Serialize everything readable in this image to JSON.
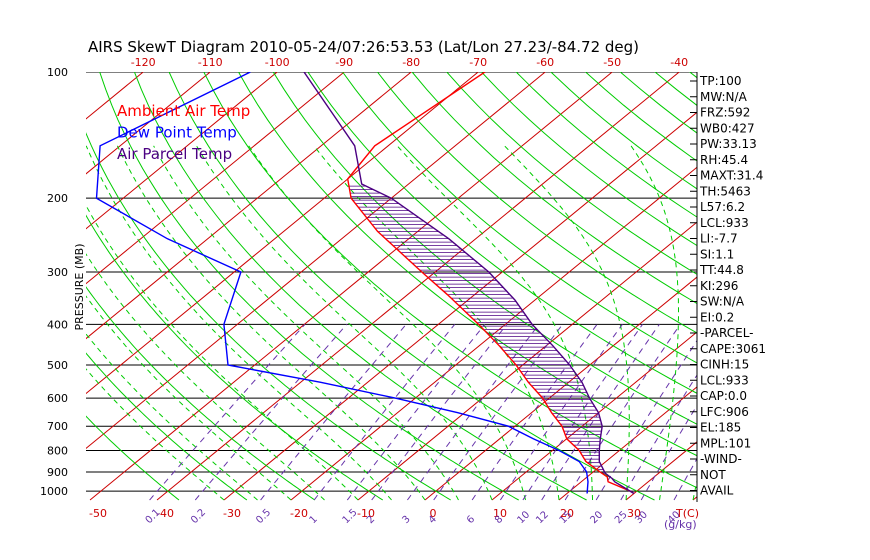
{
  "chart_data": {
    "type": "skewt",
    "title": "AIRS SkewT Diagram 2010-05-24/07:26:53.53 (Lat/Lon 27.23/-84.72 deg)",
    "ylabel": "PRESSURE (MB)",
    "x_unit_label": "T(C)",
    "mixing_ratio_unit_label": "(g/kg)",
    "top_tick_labels": [
      "-120",
      "-110",
      "-100",
      "-90",
      "-80",
      "-70",
      "-60",
      "-50",
      "-40"
    ],
    "bottom_tick_labels": [
      "-50",
      "-40",
      "-30",
      "-20",
      "-10",
      "0",
      "10",
      "20",
      "30"
    ],
    "pressure_tick_labels": [
      "100",
      "200",
      "300",
      "400",
      "500",
      "600",
      "700",
      "800",
      "900",
      "1000"
    ],
    "mixing_ratio_labels": [
      "0.1",
      "0.2",
      "0.5",
      "1",
      "1.5",
      "2",
      "3",
      "4",
      "6",
      "8",
      "10",
      "12",
      "15",
      "20",
      "25",
      "30",
      "40"
    ],
    "ylim": [
      1050,
      100
    ],
    "legend": [
      {
        "label": "Ambient Air Temp",
        "color": "#ff0000"
      },
      {
        "label": "Dew Point Temp",
        "color": "#0000ff"
      },
      {
        "label": "Air Parcel Temp",
        "color": "#4b0082"
      }
    ],
    "series": [
      {
        "name": "Ambient Air Temp",
        "color": "#ff0000",
        "points": [
          {
            "p": 100,
            "t": -69
          },
          {
            "p": 150,
            "t": -72
          },
          {
            "p": 180,
            "t": -70
          },
          {
            "p": 200,
            "t": -66
          },
          {
            "p": 240,
            "t": -56
          },
          {
            "p": 300,
            "t": -42
          },
          {
            "p": 340,
            "t": -34
          },
          {
            "p": 400,
            "t": -24
          },
          {
            "p": 450,
            "t": -17
          },
          {
            "p": 500,
            "t": -11
          },
          {
            "p": 550,
            "t": -6
          },
          {
            "p": 600,
            "t": -1
          },
          {
            "p": 650,
            "t": 3
          },
          {
            "p": 700,
            "t": 7
          },
          {
            "p": 750,
            "t": 10
          },
          {
            "p": 800,
            "t": 14
          },
          {
            "p": 850,
            "t": 17
          },
          {
            "p": 900,
            "t": 21
          },
          {
            "p": 925,
            "t": 23
          },
          {
            "p": 950,
            "t": 24
          },
          {
            "p": 1000,
            "t": 29
          },
          {
            "p": 1013,
            "t": 30
          }
        ]
      },
      {
        "name": "Dew Point Temp",
        "color": "#0000ff",
        "points": [
          {
            "p": 100,
            "t": -104
          },
          {
            "p": 150,
            "t": -113
          },
          {
            "p": 200,
            "t": -104
          },
          {
            "p": 250,
            "t": -86
          },
          {
            "p": 300,
            "t": -69
          },
          {
            "p": 400,
            "t": -62
          },
          {
            "p": 500,
            "t": -54
          },
          {
            "p": 550,
            "t": -37
          },
          {
            "p": 600,
            "t": -23
          },
          {
            "p": 650,
            "t": -11
          },
          {
            "p": 700,
            "t": -1
          },
          {
            "p": 750,
            "t": 5
          },
          {
            "p": 800,
            "t": 11
          },
          {
            "p": 850,
            "t": 16
          },
          {
            "p": 900,
            "t": 19
          },
          {
            "p": 950,
            "t": 21
          },
          {
            "p": 1013,
            "t": 23
          }
        ]
      },
      {
        "name": "Air Parcel Temp",
        "color": "#4b0082",
        "points": [
          {
            "p": 100,
            "t": -96
          },
          {
            "p": 150,
            "t": -75
          },
          {
            "p": 185,
            "t": -67
          },
          {
            "p": 200,
            "t": -60
          },
          {
            "p": 250,
            "t": -44
          },
          {
            "p": 300,
            "t": -32
          },
          {
            "p": 350,
            "t": -23
          },
          {
            "p": 400,
            "t": -16
          },
          {
            "p": 450,
            "t": -9
          },
          {
            "p": 500,
            "t": -3
          },
          {
            "p": 550,
            "t": 2
          },
          {
            "p": 600,
            "t": 6
          },
          {
            "p": 650,
            "t": 10
          },
          {
            "p": 700,
            "t": 13
          },
          {
            "p": 750,
            "t": 15
          },
          {
            "p": 800,
            "t": 17
          },
          {
            "p": 850,
            "t": 19
          },
          {
            "p": 906,
            "t": 22
          },
          {
            "p": 933,
            "t": 24
          },
          {
            "p": 950,
            "t": 25
          },
          {
            "p": 1013,
            "t": 30
          }
        ]
      }
    ],
    "indices": [
      "TP:100",
      "MW:N/A",
      "FRZ:592",
      "WB0:427",
      "PW:33.13",
      "RH:45.4",
      "MAXT:31.4",
      "TH:5463",
      "L57:6.2",
      "LCL:933",
      "LI:-7.7",
      "SI:1.1",
      "TT:44.8",
      "KI:296",
      "SW:N/A",
      "EI:0.2",
      "-PARCEL-",
      "CAPE:3061",
      "CINH:15",
      "LCL:933",
      "CAP:0.0",
      "LFC:906",
      "EL:185",
      "MPL:101",
      "-WIND-",
      "NOT",
      "AVAIL"
    ],
    "grid": true,
    "legend_position": "top-left"
  },
  "colors": {
    "ambient": "#ff0000",
    "dewpoint": "#0000ff",
    "parcel": "#4b0082",
    "isotherm": "#cc0000",
    "dry_adiabat": "#00cc00",
    "moist_adiabat": "#00cc00",
    "mixing_ratio": "#6633aa",
    "title": "#000000",
    "axis_labels": "#cc0000"
  }
}
